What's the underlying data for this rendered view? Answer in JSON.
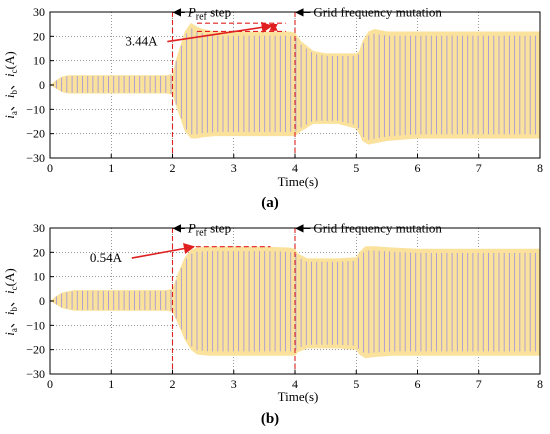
{
  "chart_data": [
    {
      "type": "area",
      "subplot_label": "(a)",
      "xlabel": "Time(s)",
      "ylabel": {
        "parts": [
          "i",
          "a",
          "、",
          "i",
          "b",
          "、",
          "i",
          "c",
          "(A)"
        ]
      },
      "xlim": [
        0,
        8
      ],
      "ylim": [
        -30,
        30
      ],
      "x_ticks": [
        "0",
        "1",
        "2",
        "3",
        "4",
        "5",
        "6",
        "7",
        "8"
      ],
      "y_ticks": [
        "30",
        "20",
        "10",
        "0",
        "−10",
        "−20",
        "−30"
      ],
      "grid": true,
      "series": [
        {
          "envelope": {
            "t": [
              0,
              0.1,
              0.2,
              0.3,
              0.4,
              1.0,
              1.5,
              1.9,
              2.0,
              2.05,
              2.2,
              2.3,
              2.4,
              2.5,
              2.7,
              3.0,
              3.5,
              3.9,
              4.0,
              4.1,
              4.3,
              4.5,
              4.7,
              5.0,
              5.05,
              5.1,
              5.2,
              5.3,
              5.5,
              6.0,
              7.0,
              8.0
            ],
            "upper": [
              0,
              2,
              3.5,
              4,
              4,
              4,
              4,
              4,
              4.5,
              10,
              22,
              25.5,
              24,
              23,
              22,
              22,
              22,
              22,
              21.5,
              18,
              14,
              13,
              13,
              13,
              14,
              18,
              22,
              23,
              22,
              22,
              22,
              22
            ],
            "lower": [
              0,
              -1.5,
              -3,
              -3.5,
              -3.5,
              -3.5,
              -3.5,
              -3.5,
              -4,
              -8,
              -19,
              -22,
              -22,
              -21.5,
              -21,
              -21,
              -21,
              -21,
              -21,
              -19,
              -16,
              -16,
              -16,
              -18,
              -20,
              -23,
              -24.5,
              -24,
              -23,
              -22,
              -22,
              -22
            ]
          }
        }
      ],
      "annotations": [
        {
          "type": "vline",
          "x": 2,
          "color": "#e02020",
          "style": "dashed"
        },
        {
          "type": "vline",
          "x": 4,
          "color": "#e02020",
          "style": "dashed"
        },
        {
          "type": "hline",
          "y": 25.4,
          "x0": 2.4,
          "x1": 3.85,
          "color": "#e02020",
          "style": "dashed"
        },
        {
          "type": "hline",
          "y": 22,
          "x0": 2.4,
          "x1": 3.85,
          "color": "#e02020",
          "style": "dashed"
        },
        {
          "type": "double-arrow",
          "x": 3.65,
          "y0": 22,
          "y1": 25.4,
          "color": "#e02020"
        },
        {
          "type": "arrow-label",
          "label": "3.44A",
          "text_x": 1.23,
          "text_y": 16.2,
          "to_x": 3.62,
          "to_y": 24.3,
          "color": "#e02020"
        },
        {
          "type": "arrow-label",
          "label_parts": [
            "P",
            "ref",
            " step"
          ],
          "text_x": 2.25,
          "text_y": 28.2,
          "to_x": 2.0,
          "to_y": 28.2,
          "color": "#000000"
        },
        {
          "type": "arrow-label",
          "label": "Grid frequency mutation",
          "text_x": 4.3,
          "text_y": 28.2,
          "to_x": 4.0,
          "to_y": 28.2,
          "color": "#000000"
        }
      ]
    },
    {
      "type": "area",
      "subplot_label": "(b)",
      "xlabel": "Time(s)",
      "ylabel": {
        "parts": [
          "i",
          "a",
          "、",
          "i",
          "b",
          "、",
          "i",
          "c",
          "(A)"
        ]
      },
      "xlim": [
        0,
        8
      ],
      "ylim": [
        -30,
        30
      ],
      "x_ticks": [
        "0",
        "1",
        "2",
        "3",
        "4",
        "5",
        "6",
        "7",
        "8"
      ],
      "y_ticks": [
        "30",
        "20",
        "10",
        "0",
        "−10",
        "−20",
        "−30"
      ],
      "grid": true,
      "series": [
        {
          "envelope": {
            "t": [
              0,
              0.1,
              0.2,
              0.3,
              0.4,
              1.0,
              1.5,
              1.9,
              2.0,
              2.1,
              2.2,
              2.3,
              2.4,
              2.6,
              3.0,
              3.5,
              3.9,
              4.0,
              4.05,
              4.2,
              4.4,
              4.7,
              5.0,
              5.05,
              5.15,
              5.3,
              5.6,
              6.0,
              7.0,
              8.0
            ],
            "upper": [
              0,
              2,
              3.5,
              4,
              4.5,
              4.5,
              4.5,
              4.5,
              5,
              12,
              18,
              21,
              22,
              22.3,
              22.3,
              22.3,
              22,
              21.5,
              19.5,
              17.5,
              17.5,
              17.5,
              18,
              20,
              22.5,
              22.5,
              22,
              21.5,
              21.5,
              21.5
            ],
            "lower": [
              0,
              -1.5,
              -3,
              -3.5,
              -4,
              -4,
              -4,
              -4,
              -4.5,
              -10,
              -16,
              -20,
              -22,
              -22.5,
              -22.5,
              -22.5,
              -22.5,
              -22.5,
              -21,
              -19.5,
              -19.5,
              -19.5,
              -20,
              -22,
              -23.5,
              -23,
              -22.5,
              -22.5,
              -22.5,
              -22.5
            ]
          }
        }
      ],
      "annotations": [
        {
          "type": "vline",
          "x": 2,
          "color": "#e02020",
          "style": "dashed"
        },
        {
          "type": "vline",
          "x": 4,
          "color": "#e02020",
          "style": "dashed"
        },
        {
          "type": "hline",
          "y": 22.3,
          "x0": 2.25,
          "x1": 3.6,
          "color": "#e02020",
          "style": "dashed"
        },
        {
          "type": "arrow-label",
          "label": "0.54A",
          "text_x": 0.65,
          "text_y": 16,
          "to_x": 2.35,
          "to_y": 22.3,
          "color": "#e02020"
        },
        {
          "type": "arrow-label",
          "label_parts": [
            "P",
            "ref",
            " step"
          ],
          "text_x": 2.25,
          "text_y": 28.2,
          "to_x": 2.0,
          "to_y": 28.2,
          "color": "#000000"
        },
        {
          "type": "arrow-label",
          "label": "Grid frequency mutation",
          "text_x": 4.3,
          "text_y": 28.2,
          "to_x": 4.0,
          "to_y": 28.2,
          "color": "#000000"
        }
      ]
    }
  ],
  "colors": {
    "fill": "#fbe29c",
    "carrier_lines": "#a79ad6",
    "annotation": "#e02020",
    "axis": "#000000",
    "grid": "#000000"
  }
}
